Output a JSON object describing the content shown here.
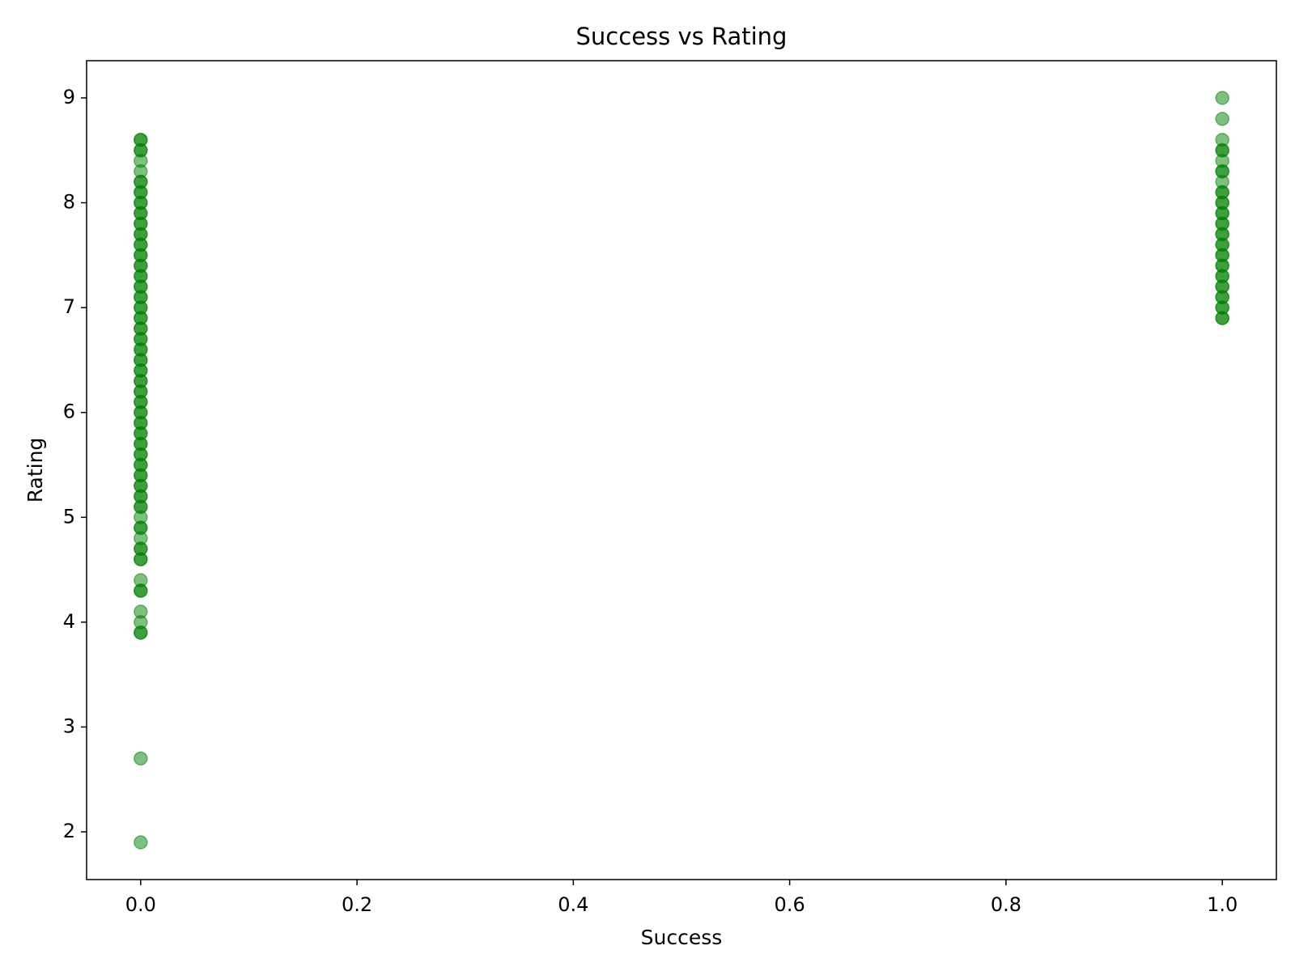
{
  "chart_data": {
    "type": "scatter",
    "title": "Success vs Rating",
    "xlabel": "Success",
    "ylabel": "Rating",
    "color": "green",
    "alpha": 0.5,
    "xlim": [
      -0.05,
      1.05
    ],
    "ylim": [
      1.545,
      9.355
    ],
    "xticks": [
      {
        "value": 0,
        "label": "0.0"
      },
      0.2,
      0.4,
      0.6,
      0.8,
      {
        "value": 1,
        "label": "1.0"
      }
    ],
    "yticks": [
      2,
      3,
      4,
      5,
      6,
      7,
      8,
      9
    ],
    "x": [
      0,
      0,
      0,
      0,
      0,
      0,
      0,
      0,
      0,
      0,
      0,
      0,
      0,
      0,
      0,
      0,
      0,
      0,
      0,
      0,
      0,
      0,
      0,
      0,
      0,
      0,
      0,
      0,
      0,
      0,
      0,
      0,
      0,
      0,
      0,
      0,
      0,
      0,
      0,
      0,
      0,
      0,
      0,
      0,
      0,
      0,
      0,
      0,
      0,
      0,
      0,
      0,
      0,
      0,
      0,
      0,
      0,
      0,
      0,
      0,
      0,
      0,
      0,
      0,
      0,
      0,
      0,
      0,
      0,
      0,
      0,
      0,
      0,
      0,
      0,
      0,
      0,
      0,
      0,
      0,
      0,
      0,
      0,
      0,
      0,
      0,
      0,
      1,
      1,
      1,
      1,
      1,
      1,
      1,
      1,
      1,
      1,
      1,
      1,
      1,
      1,
      1,
      1,
      1,
      1,
      1,
      1,
      1,
      1,
      1,
      1,
      1,
      1,
      1,
      1,
      1,
      1,
      1,
      1,
      1,
      1,
      1
    ],
    "values": [
      1.9,
      2.7,
      3.9,
      3.9,
      4.0,
      4.1,
      4.3,
      4.3,
      4.4,
      4.6,
      4.6,
      4.7,
      4.7,
      4.8,
      4.9,
      4.9,
      5.0,
      5.1,
      5.2,
      5.3,
      5.4,
      5.5,
      5.6,
      5.7,
      5.8,
      5.9,
      6.0,
      6.1,
      6.2,
      6.3,
      6.4,
      6.5,
      6.6,
      6.7,
      6.8,
      6.9,
      7.0,
      7.1,
      7.2,
      7.3,
      7.4,
      7.5,
      7.6,
      7.7,
      7.8,
      7.9,
      8.0,
      8.1,
      8.2,
      5.1,
      5.2,
      5.3,
      5.4,
      5.5,
      5.6,
      5.7,
      5.8,
      5.9,
      6.0,
      6.1,
      6.2,
      6.3,
      6.4,
      6.5,
      6.6,
      6.7,
      6.8,
      6.9,
      7.0,
      7.1,
      7.2,
      7.3,
      7.4,
      7.5,
      7.6,
      7.7,
      7.8,
      7.9,
      8.0,
      8.1,
      8.2,
      8.3,
      8.4,
      8.5,
      8.5,
      8.6,
      8.6,
      6.9,
      6.9,
      7.0,
      7.1,
      7.2,
      7.3,
      7.4,
      7.5,
      7.6,
      7.7,
      7.8,
      7.9,
      8.0,
      8.1,
      7.0,
      7.1,
      7.2,
      7.3,
      7.4,
      7.5,
      7.6,
      7.7,
      7.8,
      7.9,
      8.0,
      8.1,
      8.2,
      8.3,
      8.3,
      8.4,
      8.5,
      8.5,
      8.6,
      8.8,
      9.0
    ]
  }
}
